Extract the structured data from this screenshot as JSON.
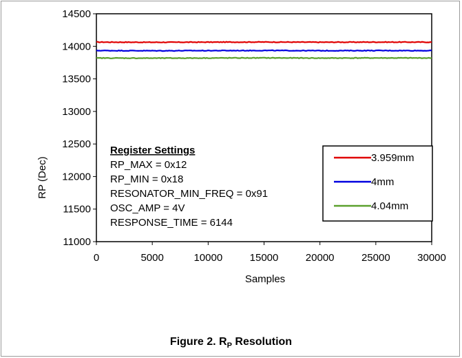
{
  "chart_data": {
    "type": "line",
    "title": "",
    "xlabel": "Samples",
    "ylabel": "RP (Dec)",
    "xlim": [
      0,
      30000
    ],
    "ylim": [
      11000,
      14500
    ],
    "xticks": [
      0,
      5000,
      10000,
      15000,
      20000,
      25000,
      30000
    ],
    "yticks": [
      11000,
      11500,
      12000,
      12500,
      13000,
      13500,
      14000,
      14500
    ],
    "grid": false,
    "legend_position": "right",
    "series": [
      {
        "name": "3.959mm",
        "color": "#e00000",
        "x": [
          0,
          5000,
          10000,
          15000,
          20000,
          25000,
          30000
        ],
        "values": [
          14065,
          14062,
          14064,
          14066,
          14063,
          14065,
          14064
        ]
      },
      {
        "name": "4mm",
        "color": "#0000e0",
        "x": [
          0,
          5000,
          10000,
          15000,
          20000,
          25000,
          30000
        ],
        "values": [
          13935,
          13932,
          13934,
          13936,
          13933,
          13935,
          13934
        ]
      },
      {
        "name": "4.04mm",
        "color": "#5aa02c",
        "x": [
          0,
          5000,
          10000,
          15000,
          20000,
          25000,
          30000
        ],
        "values": [
          13820,
          13818,
          13820,
          13822,
          13819,
          13821,
          13820
        ]
      }
    ],
    "annotation": {
      "heading": "Register Settings",
      "lines": [
        "RP_MAX = 0x12",
        "RP_MIN = 0x18",
        "RESONATOR_MIN_FREQ = 0x91",
        "OSC_AMP = 4V",
        "RESPONSE_TIME = 6144"
      ]
    }
  },
  "caption": {
    "prefix": "Figure 2. R",
    "subscript": "P",
    "suffix": " Resolution"
  }
}
